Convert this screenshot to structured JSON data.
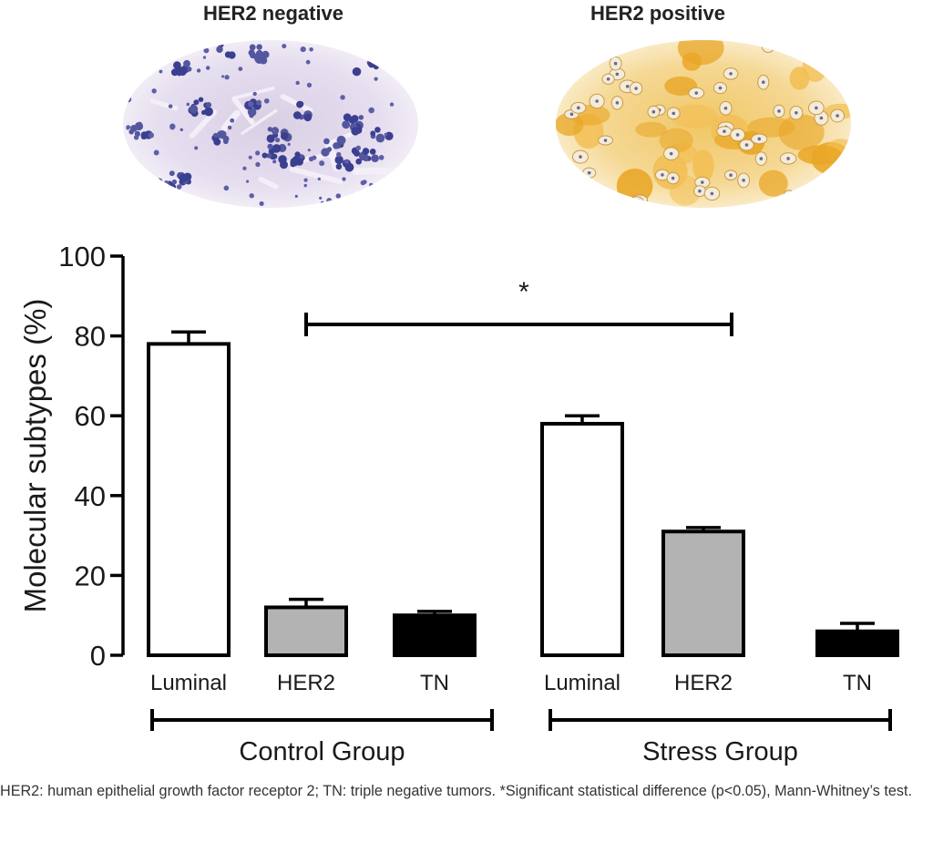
{
  "micrographs": {
    "negative_label": "HER2 negative",
    "positive_label": "HER2 positive"
  },
  "chart_data": {
    "type": "bar",
    "ylabel": "Molecular subtypes (%)",
    "ylim": [
      0,
      100
    ],
    "yticks": [
      "0",
      "20",
      "40",
      "60",
      "80",
      "100"
    ],
    "bars": [
      {
        "category": "Luminal",
        "group": "Control Group",
        "value": 78,
        "error": 3,
        "fill": "#ffffff"
      },
      {
        "category": "HER2",
        "group": "Control Group",
        "value": 12,
        "error": 2,
        "fill": "#b3b3b3"
      },
      {
        "category": "TN",
        "group": "Control Group",
        "value": 10,
        "error": 1,
        "fill": "#000000"
      },
      {
        "category": "Luminal",
        "group": "Stress Group",
        "value": 58,
        "error": 2,
        "fill": "#ffffff"
      },
      {
        "category": "HER2",
        "group": "Stress Group",
        "value": 31,
        "error": 1,
        "fill": "#b3b3b3"
      },
      {
        "category": "TN",
        "group": "Stress Group",
        "value": 6,
        "error": 2,
        "fill": "#000000"
      }
    ],
    "groups": [
      "Control Group",
      "Stress Group"
    ],
    "significance": {
      "label": "*",
      "from_category": "HER2 (Control Group)",
      "to_category": "HER2 (Stress Group)"
    }
  },
  "caption": "HER2: human epithelial growth factor receptor 2; TN: triple negative tumors. *Significant statistical difference (p<0.05), Mann-Whitney’s test."
}
